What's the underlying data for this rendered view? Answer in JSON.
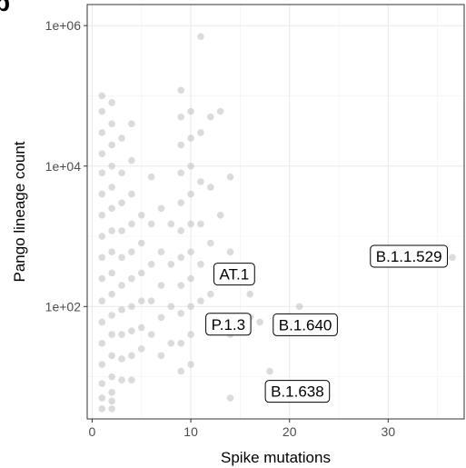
{
  "chart_data": {
    "type": "scatter",
    "panel_letter": "b",
    "xlabel": "Spike mutations",
    "ylabel": "Pango lineage count",
    "xlim": [
      -0.5,
      37.7
    ],
    "ylim_log10": [
      0.4,
      6.3
    ],
    "y_scale": "log10",
    "x_ticks": [
      0,
      10,
      20,
      30
    ],
    "x_tick_labels": [
      "0",
      "10",
      "20",
      "30"
    ],
    "y_ticks": [
      100,
      10000,
      1000000
    ],
    "y_tick_labels": [
      "1e+02",
      "1e+04",
      "1e+06"
    ],
    "grid": true,
    "point_color": "#bdbdbd",
    "points": [
      {
        "x": 1,
        "y": 100000
      },
      {
        "x": 1,
        "y": 60000
      },
      {
        "x": 1,
        "y": 30000
      },
      {
        "x": 1,
        "y": 15000
      },
      {
        "x": 1,
        "y": 8000
      },
      {
        "x": 1,
        "y": 4000
      },
      {
        "x": 1,
        "y": 2000
      },
      {
        "x": 1,
        "y": 1000
      },
      {
        "x": 1,
        "y": 500
      },
      {
        "x": 1,
        "y": 250
      },
      {
        "x": 1,
        "y": 120
      },
      {
        "x": 1,
        "y": 60
      },
      {
        "x": 1,
        "y": 30
      },
      {
        "x": 1,
        "y": 15
      },
      {
        "x": 1,
        "y": 8
      },
      {
        "x": 1,
        "y": 5
      },
      {
        "x": 1,
        "y": 3.5
      },
      {
        "x": 2,
        "y": 80000
      },
      {
        "x": 2,
        "y": 40000
      },
      {
        "x": 2,
        "y": 20000
      },
      {
        "x": 2,
        "y": 10000
      },
      {
        "x": 2,
        "y": 5000
      },
      {
        "x": 2,
        "y": 2500
      },
      {
        "x": 2,
        "y": 1200
      },
      {
        "x": 2,
        "y": 600
      },
      {
        "x": 2,
        "y": 300
      },
      {
        "x": 2,
        "y": 150
      },
      {
        "x": 2,
        "y": 75
      },
      {
        "x": 2,
        "y": 40
      },
      {
        "x": 2,
        "y": 20
      },
      {
        "x": 2,
        "y": 10
      },
      {
        "x": 2,
        "y": 6
      },
      {
        "x": 2,
        "y": 3.5
      },
      {
        "x": 2,
        "y": 4.5
      },
      {
        "x": 3,
        "y": 25000
      },
      {
        "x": 3,
        "y": 8000
      },
      {
        "x": 3,
        "y": 3000
      },
      {
        "x": 3,
        "y": 1200
      },
      {
        "x": 3,
        "y": 500
      },
      {
        "x": 3,
        "y": 200
      },
      {
        "x": 3,
        "y": 90
      },
      {
        "x": 3,
        "y": 40
      },
      {
        "x": 3,
        "y": 18
      },
      {
        "x": 3,
        "y": 9
      },
      {
        "x": 4,
        "y": 40000
      },
      {
        "x": 4,
        "y": 12000
      },
      {
        "x": 4,
        "y": 4000
      },
      {
        "x": 4,
        "y": 1500
      },
      {
        "x": 4,
        "y": 600
      },
      {
        "x": 4,
        "y": 250
      },
      {
        "x": 4,
        "y": 100
      },
      {
        "x": 4,
        "y": 45
      },
      {
        "x": 4,
        "y": 20
      },
      {
        "x": 4,
        "y": 9
      },
      {
        "x": 5,
        "y": 2000
      },
      {
        "x": 5,
        "y": 800
      },
      {
        "x": 5,
        "y": 300
      },
      {
        "x": 5,
        "y": 120
      },
      {
        "x": 5,
        "y": 50
      },
      {
        "x": 5,
        "y": 25
      },
      {
        "x": 6,
        "y": 7000
      },
      {
        "x": 6,
        "y": 1500
      },
      {
        "x": 6,
        "y": 400
      },
      {
        "x": 6,
        "y": 120
      },
      {
        "x": 6,
        "y": 40
      },
      {
        "x": 7,
        "y": 2500
      },
      {
        "x": 7,
        "y": 600
      },
      {
        "x": 7,
        "y": 200
      },
      {
        "x": 7,
        "y": 70
      },
      {
        "x": 7,
        "y": 20
      },
      {
        "x": 8,
        "y": 1500
      },
      {
        "x": 8,
        "y": 400
      },
      {
        "x": 8,
        "y": 100
      },
      {
        "x": 8,
        "y": 30
      },
      {
        "x": 9,
        "y": 120000
      },
      {
        "x": 9,
        "y": 50000
      },
      {
        "x": 9,
        "y": 20000
      },
      {
        "x": 9,
        "y": 8000
      },
      {
        "x": 9,
        "y": 3000
      },
      {
        "x": 9,
        "y": 1200
      },
      {
        "x": 9,
        "y": 500
      },
      {
        "x": 9,
        "y": 200
      },
      {
        "x": 9,
        "y": 80
      },
      {
        "x": 9,
        "y": 30
      },
      {
        "x": 9,
        "y": 12
      },
      {
        "x": 10,
        "y": 60000
      },
      {
        "x": 10,
        "y": 25000
      },
      {
        "x": 10,
        "y": 10000
      },
      {
        "x": 10,
        "y": 4000
      },
      {
        "x": 10,
        "y": 1500
      },
      {
        "x": 10,
        "y": 600
      },
      {
        "x": 10,
        "y": 250
      },
      {
        "x": 10,
        "y": 100
      },
      {
        "x": 10,
        "y": 40
      },
      {
        "x": 10,
        "y": 15
      },
      {
        "x": 11,
        "y": 700000
      },
      {
        "x": 11,
        "y": 30000
      },
      {
        "x": 11,
        "y": 6000
      },
      {
        "x": 11,
        "y": 1500
      },
      {
        "x": 11,
        "y": 400
      },
      {
        "x": 11,
        "y": 120
      },
      {
        "x": 12,
        "y": 50000
      },
      {
        "x": 12,
        "y": 5000
      },
      {
        "x": 12,
        "y": 800
      },
      {
        "x": 12,
        "y": 150
      },
      {
        "x": 13,
        "y": 60000
      },
      {
        "x": 13,
        "y": 2000
      },
      {
        "x": 13,
        "y": 300
      },
      {
        "x": 14,
        "y": 7000
      },
      {
        "x": 14,
        "y": 600
      },
      {
        "x": 14,
        "y": 40
      },
      {
        "x": 14,
        "y": 5
      },
      {
        "x": 15,
        "y": 250
      },
      {
        "x": 16,
        "y": 150
      },
      {
        "x": 16,
        "y": 70
      },
      {
        "x": 17,
        "y": 60
      },
      {
        "x": 18,
        "y": 12
      },
      {
        "x": 21,
        "y": 100
      },
      {
        "x": 36.5,
        "y": 500
      }
    ],
    "annotations": [
      {
        "label": "AT.1",
        "x": 14.4,
        "y": 290
      },
      {
        "label": "P.1.3",
        "x": 13.8,
        "y": 56
      },
      {
        "label": "B.1.640",
        "x": 21.6,
        "y": 55
      },
      {
        "label": "B.1.638",
        "x": 20.8,
        "y": 6.2
      },
      {
        "label": "B.1.1.529",
        "x": 32.1,
        "y": 520
      }
    ]
  }
}
